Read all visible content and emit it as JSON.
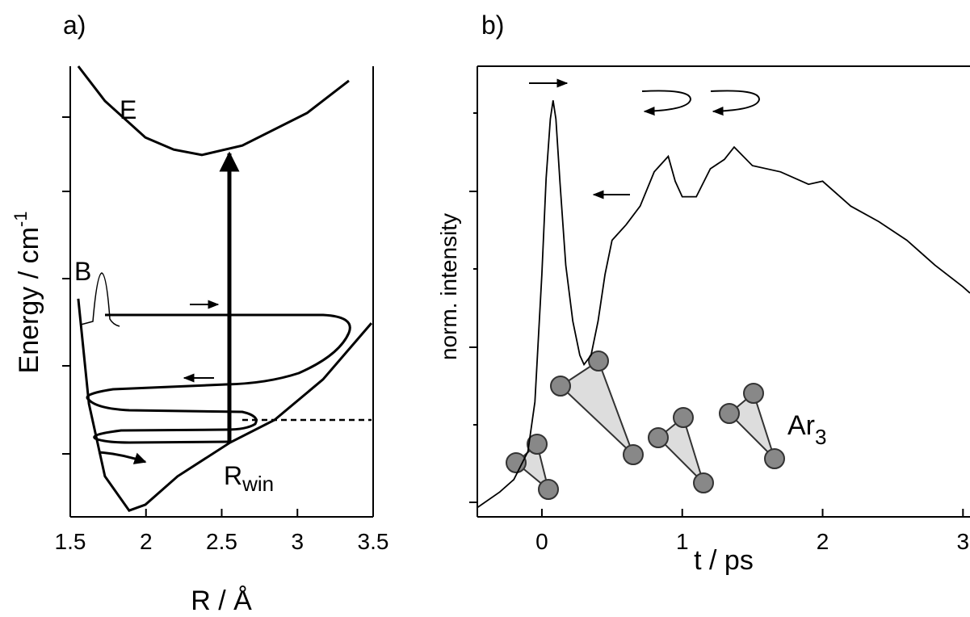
{
  "chart_data": [
    {
      "type": "line",
      "title": "a)",
      "xlabel": "R / Å",
      "ylabel": {
        "main": "Energy / cm",
        "sup": "-1"
      },
      "xlim": [
        1.5,
        3.5
      ],
      "ylim": [
        0,
        100
      ],
      "xticks": [
        1.5,
        2,
        2.5,
        3,
        3.5
      ],
      "series": [
        {
          "name": "E",
          "color": "#000000",
          "x": [
            1.553,
            1.729,
            1.996,
            2.183,
            2.369,
            2.636,
            3.063,
            3.34
          ],
          "values": [
            100,
            92.3,
            84.2,
            81.5,
            80.3,
            82.4,
            89.6,
            96.8
          ]
        },
        {
          "name": "B",
          "color": "#000000",
          "x": [
            1.553,
            1.623,
            1.729,
            1.889,
            1.996,
            2.209,
            2.556,
            2.849,
            3.169,
            3.489
          ],
          "values": [
            48.4,
            25.1,
            9.0,
            1.4,
            2.7,
            9.0,
            16.5,
            21.5,
            30.5,
            43.0
          ]
        }
      ],
      "annotation": {
        "main": "R",
        "sub": "win"
      }
    },
    {
      "type": "line",
      "title": "b)",
      "xlabel": "t / ps",
      "ylabel": "norm. intensity",
      "xlim": [
        -0.46,
        3.05
      ],
      "ylim": [
        -0.05,
        1.4
      ],
      "xticks": [
        0,
        1,
        2,
        3
      ],
      "series": [
        {
          "color": "#000000",
          "x": [
            -0.46,
            -0.3,
            -0.2,
            -0.1,
            -0.05,
            0.0,
            0.03,
            0.06,
            0.08,
            0.1,
            0.13,
            0.17,
            0.22,
            0.27,
            0.3,
            0.35,
            0.4,
            0.45,
            0.5,
            0.6,
            0.7,
            0.8,
            0.9,
            0.95,
            1.0,
            1.1,
            1.2,
            1.3,
            1.37,
            1.5,
            1.7,
            1.9,
            2.0,
            2.2,
            2.4,
            2.6,
            2.8,
            3.0,
            3.05
          ],
          "values": [
            -0.02,
            0.03,
            0.07,
            0.16,
            0.32,
            0.73,
            1.04,
            1.23,
            1.29,
            1.23,
            1.02,
            0.76,
            0.58,
            0.47,
            0.44,
            0.47,
            0.58,
            0.73,
            0.84,
            0.89,
            0.95,
            1.06,
            1.11,
            1.03,
            0.98,
            0.98,
            1.07,
            1.1,
            1.14,
            1.08,
            1.06,
            1.02,
            1.03,
            0.95,
            0.9,
            0.84,
            0.76,
            0.69,
            0.67
          ]
        }
      ],
      "annotation": {
        "main": "Ar",
        "sub": "3"
      }
    }
  ]
}
